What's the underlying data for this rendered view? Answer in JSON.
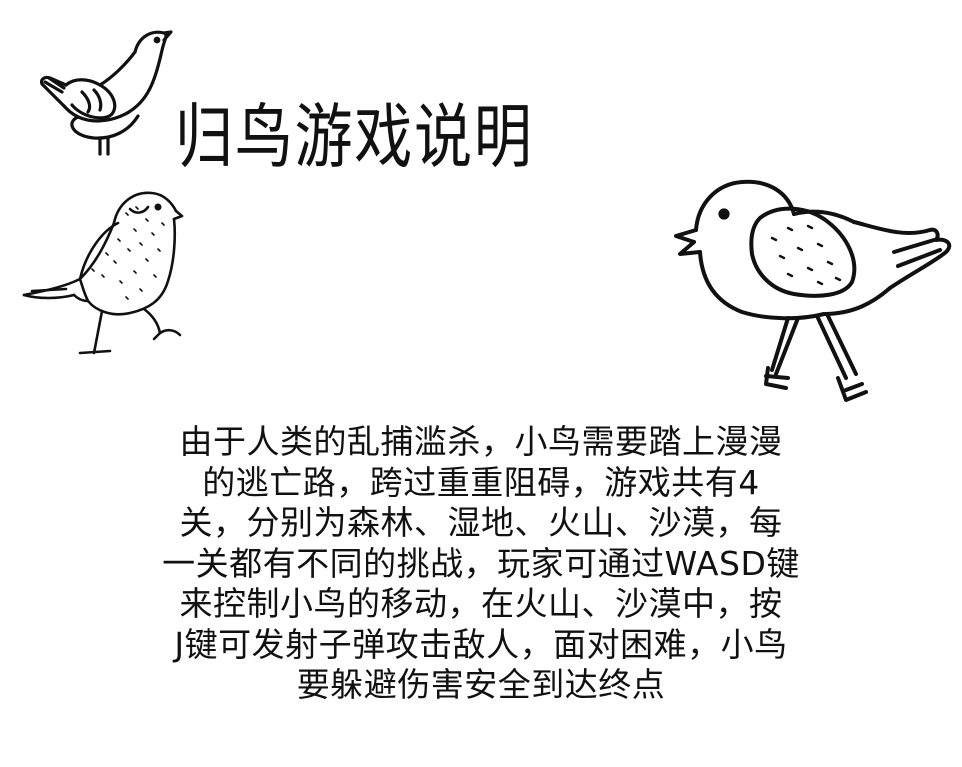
{
  "title": "归鸟游戏说明",
  "description_lines": [
    "由于人类的乱捕滥杀，小鸟需要踏上漫漫",
    "的逃亡路，跨过重重阻碍，游戏共有4",
    "关，分别为森林、湿地、火山、沙漠，每",
    "一关都有不同的挑战，玩家可通过WASD键",
    "来控制小鸟的移动，在火山、沙漠中，按",
    "J键可发射子弹攻击敌人，面对困难，小鸟",
    "要躲避伤害安全到达终点"
  ],
  "icons": [
    "bird-icon",
    "bird-icon",
    "bird-icon"
  ]
}
